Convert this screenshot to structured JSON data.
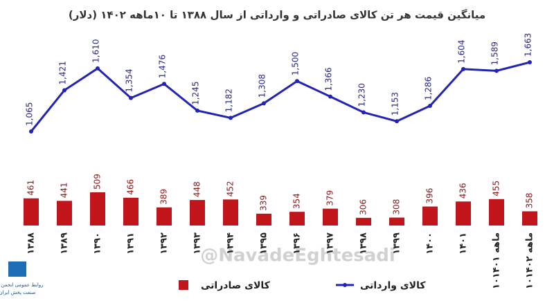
{
  "chart_data": {
    "type": "combo",
    "title": "میانگین قیمت  هر تن کالای صادراتی و وارداتی از سال ۱۳۸۸ تا ۱۰ماهه ۱۴۰۲ (دلار)",
    "categories": [
      "۱۳۸۸",
      "۱۳۸۹",
      "۱۳۹۰",
      "۱۳۹۱",
      "۱۳۹۲",
      "۱۳۹۳",
      "۱۳۹۴",
      "۱۳۹۵",
      "۱۳۹۶",
      "۱۳۹۷",
      "۱۳۹۸",
      "۱۳۹۹",
      "۱۴۰۰",
      "۱۴۰۱",
      "۱۰ماهه ۱۴۰۱",
      "۱۰ماهه ۱۴۰۲"
    ],
    "series": [
      {
        "name": "کالای وارداتی",
        "type": "line",
        "color": "#2323b5",
        "values": [
          1065,
          1421,
          1610,
          1354,
          1476,
          1245,
          1182,
          1308,
          1500,
          1366,
          1230,
          1153,
          1286,
          1604,
          1589,
          1663
        ],
        "value_labels": [
          "1,065",
          "1,421",
          "1,610",
          "1,354",
          "1,476",
          "1,245",
          "1,182",
          "1,308",
          "1,500",
          "1,366",
          "1,230",
          "1,153",
          "1,286",
          "1,604",
          "1,589",
          "1,663"
        ]
      },
      {
        "name": "کالای صادراتی",
        "type": "bar",
        "color": "#c0161b",
        "values": [
          461,
          441,
          509,
          466,
          389,
          448,
          452,
          339,
          354,
          379,
          306,
          308,
          396,
          436,
          455,
          358
        ]
      }
    ]
  },
  "watermark": "@NavadeEghtesadi",
  "logo": [
    "روابط عمومی انجمن ملی",
    "صنعت پخش ایران"
  ]
}
